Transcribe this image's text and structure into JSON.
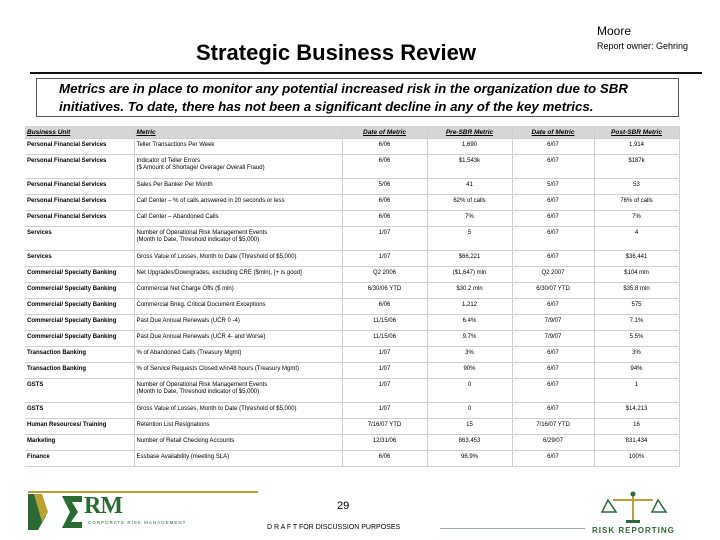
{
  "header": {
    "author": "Moore",
    "owner": "Report owner: Gehring",
    "title": "Strategic Business Review"
  },
  "summary": "Metrics are in place to monitor any potential increased risk in the organization due to SBR initiatives.   To date, there has not been a significant decline in any of the key metrics.",
  "table": {
    "columns": [
      "Business Unit",
      "Metric",
      "Date of Metric",
      "Pre-SBR Metric",
      "Date of Metric",
      "Post-SBR Metric"
    ],
    "rows": [
      {
        "unit": "Personal Financial Services",
        "metric": "Teller Transactions Per Week",
        "metric2": "",
        "date1": "6/06",
        "pre": "1,690",
        "date2": "6/07",
        "post": "1,914"
      },
      {
        "unit": "Personal Financial Services",
        "metric": "Indicator of Teller Errors",
        "metric2": "($ Amount of Shortage/ Overage/ Overall Fraud)",
        "date1": "6/06",
        "pre": "$1,543k",
        "date2": "6/07",
        "post": "$187k"
      },
      {
        "unit": "Personal Financial Services",
        "metric": "Sales Per Banker Per Month",
        "metric2": "",
        "date1": "5/06",
        "pre": "41",
        "date2": "5/07",
        "post": "53"
      },
      {
        "unit": "Personal Financial Services",
        "metric": "Call Center – % of calls answered in 20 seconds or less",
        "metric2": "",
        "date1": "6/06",
        "pre": "62% of calls",
        "date2": "6/07",
        "post": "76% of calls"
      },
      {
        "unit": "Personal Financial Services",
        "metric": "Call Center – Abandoned Calls",
        "metric2": "",
        "date1": "6/06",
        "pre": "7%",
        "date2": "6/07",
        "post": "7%"
      },
      {
        "unit": "Services",
        "metric": "Number of Operational Risk Management Events",
        "metric2": "(Month to Date, Threshold indicator of $5,000)",
        "date1": "1/07",
        "pre": "5",
        "date2": "6/07",
        "post": "4"
      },
      {
        "unit": "Services",
        "metric": "Gross Value of Losses, Month to Date (Threshold of $5,000)",
        "metric2": "",
        "date1": "1/07",
        "pre": "$66,221",
        "date2": "6/07",
        "post": "$36,441"
      },
      {
        "unit": "Commercial/ Specialty Banking",
        "metric": "Net Upgrades/Downgrades, excluding CRE ($mln), [+ is good]",
        "metric2": "",
        "date1": "Q2 2006",
        "pre": "($1,647) mln",
        "date2": "Q2 2007",
        "post": "$104 mln"
      },
      {
        "unit": "Commercial/ Specialty Banking",
        "metric": "Commercial Net Charge Offs ($ mln)",
        "metric2": "",
        "date1": "6/30/06 YTD",
        "pre": "$30.2 mln",
        "date2": "6/30/07 YTD",
        "post": "$35.8 mln"
      },
      {
        "unit": "Commercial/ Specialty Banking",
        "metric": "Commercial Bnkg. Critical Document Exceptions",
        "metric2": "",
        "date1": "6/06",
        "pre": "1,212",
        "date2": "6/07",
        "post": "575"
      },
      {
        "unit": "Commercial/ Specialty Banking",
        "metric": "Past Due Annual Renewals (UCR 0 -4)",
        "metric2": "",
        "date1": "11/15/06",
        "pre": "6.4%",
        "date2": "7/9/07",
        "post": "7.1%"
      },
      {
        "unit": "Commercial/ Specialty Banking",
        "metric": "Past Due Annual Renewals (UCR 4- and Worse)",
        "metric2": "",
        "date1": "11/15/06",
        "pre": "9.7%",
        "date2": "7/9/07",
        "post": "5.5%"
      },
      {
        "unit": "Transaction Banking",
        "metric": "% of Abandoned Calls (Treasury Mgmt)",
        "metric2": "",
        "date1": "1/07",
        "pre": "3%",
        "date2": "6/07",
        "post": "3%"
      },
      {
        "unit": "Transaction Banking",
        "metric": "% of Service Requests Closed w/in48 hours (Treasury Mgmt)",
        "metric2": "",
        "date1": "1/07",
        "pre": "90%",
        "date2": "6/07",
        "post": "94%"
      },
      {
        "unit": "GSTS",
        "metric": "Number of Operational Risk Management Events",
        "metric2": "(Month to Date, Threshold indicator of $5,000)",
        "date1": "1/07",
        "pre": "0",
        "date2": "6/07",
        "post": "1"
      },
      {
        "unit": "GSTS",
        "metric": "Gross Value of Losses, Month to Date (Threshold of $5,000)",
        "metric2": "",
        "date1": "1/07",
        "pre": "0",
        "date2": "6/07",
        "post": "$14,213"
      },
      {
        "unit": "Human Resources/ Training",
        "metric": "Retention List Resignations",
        "metric2": "",
        "date1": "7/16/07 YTD",
        "pre": "15",
        "date2": "7/16/07 YTD",
        "post": "16"
      },
      {
        "unit": "Marketing",
        "metric": "Number of Retail Checking Accounts",
        "metric2": "",
        "date1": "12/31/06",
        "pre": "863,453",
        "date2": "6/29/07",
        "post": "831,434"
      },
      {
        "unit": "Finance",
        "metric": "Essbase Availability (meeting SLA)",
        "metric2": "",
        "date1": "6/06",
        "pre": "96.9%",
        "date2": "6/07",
        "post": "100%"
      }
    ]
  },
  "footer": {
    "page_number": "29",
    "draft_label": "D R A F T  FOR DISCUSSION PURPOSES",
    "erm_logo_text": "RM",
    "erm_logo_sub": "CORPORATE RISK MANAGEMENT",
    "risk_logo_text": "RISK REPORTING"
  },
  "colors": {
    "logo_green": "#2a6a33",
    "logo_gold": "#b9a233",
    "table_shade": "#e2e2e2"
  }
}
